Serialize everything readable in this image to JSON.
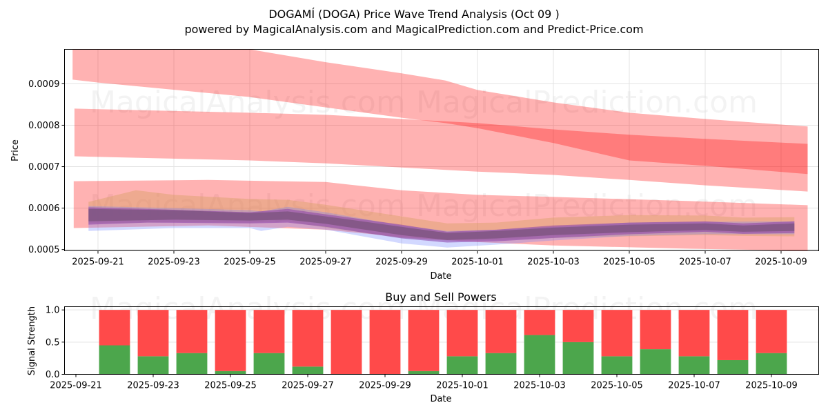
{
  "header": {
    "title": "DOGAMÍ (DOGA) Price Wave Trend Analysis (Oct 09 )",
    "subtitle": "powered by MagicalAnalysis.com and MagicalPrediction.com and Predict-Price.com"
  },
  "watermarks": [
    "MagicalAnalysis.com",
    "MagicalPrediction.com"
  ],
  "chart_data": [
    {
      "type": "area",
      "title": "DOGAMÍ (DOGA) Price Wave Trend Analysis (Oct 09 )",
      "xlabel": "Date",
      "ylabel": "Price",
      "x_start_date": "2025-09-21",
      "xlim_days": [
        -0.9,
        19.0
      ],
      "ylim": [
        0.000497,
        0.000983
      ],
      "grid": true,
      "x_ticks": [
        "2025-09-21",
        "2025-09-23",
        "2025-09-25",
        "2025-09-27",
        "2025-09-29",
        "2025-10-01",
        "2025-10-03",
        "2025-10-05",
        "2025-10-07",
        "2025-10-09"
      ],
      "x_tick_days": [
        0,
        2,
        4,
        6,
        8,
        10,
        12,
        14,
        16,
        18
      ],
      "y_ticks": [
        "0.0005",
        "0.0006",
        "0.0007",
        "0.0008",
        "0.0009"
      ],
      "y_tick_values": [
        0.0005,
        0.0006,
        0.0007,
        0.0008,
        0.0009
      ],
      "bands": [
        {
          "name": "upper-trend-band",
          "color": "#ff0000",
          "opacity": 0.3,
          "days": [
            -0.67,
            0,
            4,
            6,
            8,
            9.15,
            10,
            12,
            14,
            16,
            18.7
          ],
          "upper": [
            0.001,
            0.001,
            0.000983,
            0.000952,
            0.000925,
            0.000908,
            0.000885,
            0.000855,
            0.00083,
            0.000815,
            0.000797
          ],
          "lower": [
            0.00091,
            0.000903,
            0.000868,
            0.000843,
            0.000818,
            0.000805,
            0.000793,
            0.000757,
            0.000715,
            0.000702,
            0.000682
          ]
        },
        {
          "name": "middle-trend-band",
          "color": "#ff0000",
          "opacity": 0.3,
          "days": [
            -0.62,
            4,
            6,
            8,
            10,
            12,
            14,
            16,
            18.7
          ],
          "upper": [
            0.00084,
            0.00083,
            0.000825,
            0.000815,
            0.000805,
            0.00079,
            0.000777,
            0.000767,
            0.000755
          ],
          "lower": [
            0.000725,
            0.000715,
            0.000708,
            0.000698,
            0.000688,
            0.00068,
            0.000668,
            0.000655,
            0.00064
          ]
        },
        {
          "name": "lower-trend-band",
          "color": "#ff0000",
          "opacity": 0.3,
          "days": [
            -0.64,
            2.9,
            6,
            8,
            10,
            12,
            15.6,
            18.7
          ],
          "upper": [
            0.000665,
            0.000668,
            0.000663,
            0.000643,
            0.000632,
            0.000627,
            0.000617,
            0.000607
          ],
          "lower": [
            0.000552,
            0.000558,
            0.000548,
            0.00053,
            0.000518,
            0.00051,
            0.000502,
            0.000497
          ]
        }
      ],
      "waves": [
        {
          "name": "orange-wave",
          "color": "#d9a066",
          "opacity": 0.45,
          "days": [
            -0.25,
            1.0,
            2.0,
            4,
            5,
            6,
            8,
            9.2,
            10.5,
            12,
            14,
            16,
            17,
            18.35
          ],
          "upper": [
            0.000615,
            0.000643,
            0.000632,
            0.000622,
            0.00062,
            0.000608,
            0.00058,
            0.000563,
            0.000565,
            0.000577,
            0.000583,
            0.000582,
            0.000577,
            0.000578
          ],
          "lower": [
            0.000563,
            0.000565,
            0.000566,
            0.000565,
            0.000568,
            0.000553,
            0.000528,
            0.000522,
            0.000523,
            0.000528,
            0.000532,
            0.000535,
            0.000533,
            0.000532
          ]
        },
        {
          "name": "blue-wave",
          "color": "#6a7dff",
          "opacity": 0.3,
          "days": [
            -0.25,
            2,
            4,
            4.3,
            5,
            6,
            8,
            9.2,
            10.5,
            12,
            14,
            16,
            18.35
          ],
          "upper": [
            0.000605,
            0.0006,
            0.000595,
            0.000592,
            0.000603,
            0.00059,
            0.000558,
            0.000545,
            0.000548,
            0.000555,
            0.000565,
            0.000567,
            0.000568
          ],
          "lower": [
            0.000545,
            0.000552,
            0.000552,
            0.000545,
            0.000555,
            0.000548,
            0.000515,
            0.000505,
            0.000512,
            0.000522,
            0.000533,
            0.000537,
            0.000537
          ]
        },
        {
          "name": "purple-wave",
          "color": "#8a3fa8",
          "opacity": 0.55,
          "days": [
            -0.25,
            1.3,
            4,
            5,
            6,
            8,
            9.2,
            10.5,
            12,
            14,
            16,
            17,
            18.35
          ],
          "upper": [
            0.000602,
            0.000598,
            0.00059,
            0.000598,
            0.000585,
            0.00056,
            0.000543,
            0.000548,
            0.000558,
            0.000565,
            0.000568,
            0.000563,
            0.000568
          ],
          "lower": [
            0.00056,
            0.000565,
            0.000563,
            0.000565,
            0.000555,
            0.000527,
            0.000517,
            0.00052,
            0.000528,
            0.000537,
            0.000543,
            0.000538,
            0.00054
          ]
        },
        {
          "name": "dark-wave",
          "color": "#6b4a6b",
          "opacity": 0.55,
          "days": [
            -0.25,
            2,
            4,
            5,
            6,
            8,
            9.2,
            10.5,
            12,
            14,
            16,
            17,
            18.35
          ],
          "upper": [
            0.000598,
            0.000595,
            0.000588,
            0.000592,
            0.00058,
            0.000555,
            0.00054,
            0.000545,
            0.000553,
            0.00056,
            0.000563,
            0.000558,
            0.000563
          ],
          "lower": [
            0.000568,
            0.000572,
            0.00057,
            0.000572,
            0.000562,
            0.000535,
            0.000523,
            0.000527,
            0.000535,
            0.000542,
            0.000547,
            0.000543,
            0.000545
          ]
        }
      ]
    },
    {
      "type": "bar",
      "title": "Buy and Sell Powers",
      "xlabel": "Date",
      "ylabel": "Signal Strength",
      "ylim": [
        0,
        1.05
      ],
      "grid": true,
      "x_start_date": "2025-09-21",
      "xlim_days": [
        -0.3,
        19.2
      ],
      "x_ticks": [
        "2025-09-21",
        "2025-09-23",
        "2025-09-25",
        "2025-09-27",
        "2025-09-29",
        "2025-10-01",
        "2025-10-03",
        "2025-10-05",
        "2025-10-07",
        "2025-10-09"
      ],
      "x_tick_days": [
        0,
        2,
        4,
        6,
        8,
        10,
        12,
        14,
        16,
        18
      ],
      "y_ticks": [
        "0.0",
        "0.5",
        "1.0"
      ],
      "y_tick_values": [
        0,
        0.5,
        1.0
      ],
      "categories": [
        "2025-09-22",
        "2025-09-23",
        "2025-09-24",
        "2025-09-25",
        "2025-09-26",
        "2025-09-27",
        "2025-09-28",
        "2025-09-29",
        "2025-09-30",
        "2025-10-01",
        "2025-10-02",
        "2025-10-03",
        "2025-10-04",
        "2025-10-05",
        "2025-10-06",
        "2025-10-07",
        "2025-10-08",
        "2025-10-09"
      ],
      "category_days": [
        1,
        2,
        3,
        4,
        5,
        6,
        7,
        8,
        9,
        10,
        11,
        12,
        13,
        14,
        15,
        16,
        17,
        18
      ],
      "series": [
        {
          "name": "Buy Power",
          "color": "#4ca64c",
          "values": [
            0.45,
            0.28,
            0.33,
            0.05,
            0.33,
            0.12,
            0.0,
            0.0,
            0.05,
            0.28,
            0.33,
            0.61,
            0.5,
            0.28,
            0.39,
            0.28,
            0.22,
            0.33
          ]
        },
        {
          "name": "Sell Power",
          "color": "#ff4a4a",
          "values": [
            0.55,
            0.72,
            0.67,
            0.95,
            0.67,
            0.88,
            1.0,
            1.0,
            0.95,
            0.72,
            0.67,
            0.39,
            0.5,
            0.72,
            0.61,
            0.72,
            0.78,
            0.67
          ]
        }
      ]
    }
  ]
}
